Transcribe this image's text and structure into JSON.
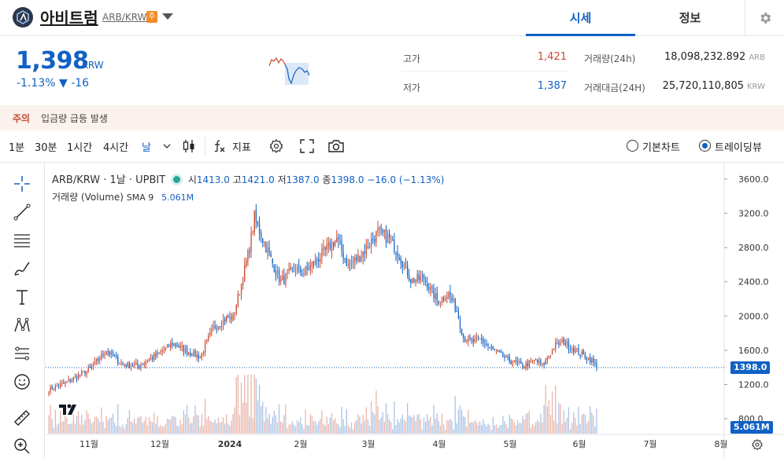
{
  "header": {
    "coin_name": "아비트럼",
    "pair": "ARB/KRW",
    "caution_badge": "주",
    "tabs": [
      {
        "label": "시세"
      },
      {
        "label": "정보"
      }
    ]
  },
  "price": {
    "current": "1,398",
    "unit": "KRW",
    "change_rate": "-1.13%",
    "change_amount": "▼ -16",
    "high_label": "고가",
    "high": "1,421",
    "low_label": "저가",
    "low": "1,387",
    "volume_label": "거래량(24h)",
    "volume": "18,098,232.892",
    "volume_unit": "ARB",
    "amount_label": "거래대금(24H)",
    "amount": "25,720,110,805",
    "amount_unit": "KRW"
  },
  "warning": {
    "tag": "주의",
    "text": "입금량 급등 발생"
  },
  "toolbar": {
    "intervals": [
      {
        "label": "1분"
      },
      {
        "label": "30분"
      },
      {
        "label": "1시간"
      },
      {
        "label": "4시간"
      },
      {
        "label": "날"
      }
    ],
    "indicator_label": "지표",
    "basic_chart_label": "기본차트",
    "tradingview_label": "트레이딩뷰"
  },
  "legend": {
    "symbol": "ARB/KRW · 1날 · UPBIT",
    "open_label": "시",
    "open": "1413.0",
    "high_label": "고",
    "high": "1421.0",
    "low_label": "저",
    "low": "1387.0",
    "close_label": "종",
    "close": "1398.0",
    "change": "−16.0 (−1.13%)",
    "volume_label": "거래량 (Volume)",
    "sma_label": "SMA 9",
    "sma_value": "5.061M"
  },
  "colors": {
    "up": "#c84a31",
    "down": "#1261c4",
    "accent": "#1261c4"
  },
  "chart_data": {
    "type": "candlestick",
    "y_ticks": [
      "3600.0",
      "3200.0",
      "2800.0",
      "2400.0",
      "2000.0",
      "1600.0",
      "1200.0",
      "800.0"
    ],
    "x_ticks": [
      "11월",
      "12월",
      "2024",
      "2월",
      "3월",
      "4월",
      "5월",
      "6월",
      "7월",
      "8월"
    ],
    "ylim": [
      800,
      3600
    ],
    "last_price_label": "1398.0",
    "volume_label": "5.061M",
    "close_anchors": [
      [
        0,
        1140
      ],
      [
        10,
        1220
      ],
      [
        25,
        1380
      ],
      [
        35,
        1600
      ],
      [
        45,
        1430
      ],
      [
        55,
        1420
      ],
      [
        62,
        1500
      ],
      [
        70,
        1600
      ],
      [
        75,
        1680
      ],
      [
        85,
        1580
      ],
      [
        92,
        1520
      ],
      [
        100,
        1860
      ],
      [
        108,
        1980
      ],
      [
        112,
        1980
      ],
      [
        118,
        2460
      ],
      [
        122,
        2800
      ],
      [
        125,
        3150
      ],
      [
        130,
        2900
      ],
      [
        135,
        2660
      ],
      [
        141,
        2400
      ],
      [
        150,
        2560
      ],
      [
        155,
        2500
      ],
      [
        165,
        2700
      ],
      [
        175,
        2900
      ],
      [
        182,
        2580
      ],
      [
        190,
        2720
      ],
      [
        200,
        2980
      ],
      [
        207,
        2900
      ],
      [
        213,
        2720
      ],
      [
        220,
        2420
      ],
      [
        228,
        2440
      ],
      [
        236,
        2180
      ],
      [
        243,
        2260
      ],
      [
        248,
        2060
      ],
      [
        252,
        1750
      ],
      [
        258,
        1700
      ],
      [
        263,
        1720
      ],
      [
        270,
        1600
      ],
      [
        280,
        1480
      ],
      [
        288,
        1420
      ],
      [
        296,
        1480
      ],
      [
        300,
        1420
      ],
      [
        308,
        1660
      ],
      [
        313,
        1700
      ],
      [
        320,
        1600
      ],
      [
        325,
        1540
      ],
      [
        330,
        1480
      ],
      [
        333,
        1398
      ]
    ]
  }
}
